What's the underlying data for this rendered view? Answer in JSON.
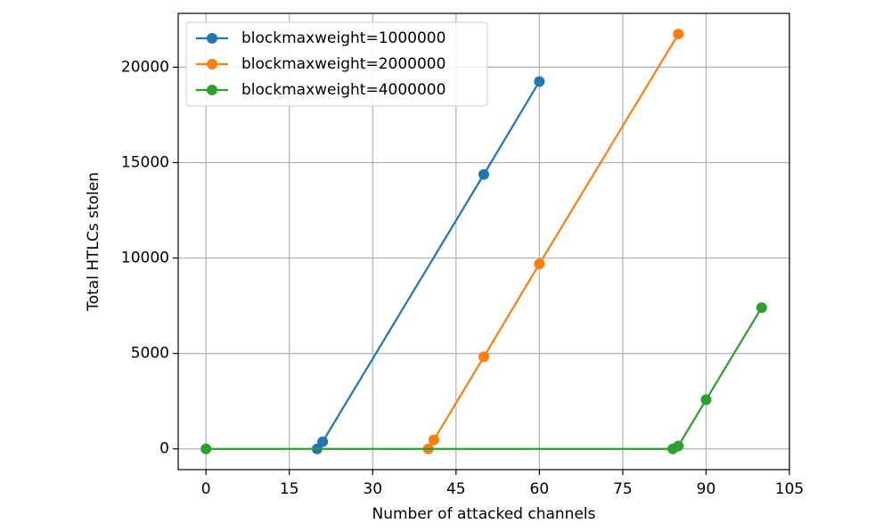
{
  "chart_data": {
    "type": "line",
    "xlabel": "Number of attacked channels",
    "ylabel": "Total HTLCs stolen",
    "xlim": [
      -5,
      105
    ],
    "ylim": [
      -1087,
      22820
    ],
    "xticks": [
      0,
      15,
      30,
      45,
      60,
      75,
      90,
      105
    ],
    "yticks": [
      0,
      5000,
      10000,
      15000,
      20000
    ],
    "grid": true,
    "legend": "upper left",
    "series": [
      {
        "name": "blockmaxweight=1000000",
        "color": "#1f77b4",
        "x": [
          20,
          21,
          50,
          60
        ],
        "values": [
          0,
          375,
          14380,
          19250
        ]
      },
      {
        "name": "blockmaxweight=2000000",
        "color": "#ff7f0e",
        "x": [
          40,
          41,
          50,
          60,
          85
        ],
        "values": [
          0,
          470,
          4824,
          9695,
          21733
        ]
      },
      {
        "name": "blockmaxweight=4000000",
        "color": "#2ca02c",
        "x": [
          0,
          84,
          85,
          90,
          100
        ],
        "values": [
          0,
          0,
          150,
          2576,
          7400
        ]
      }
    ]
  }
}
